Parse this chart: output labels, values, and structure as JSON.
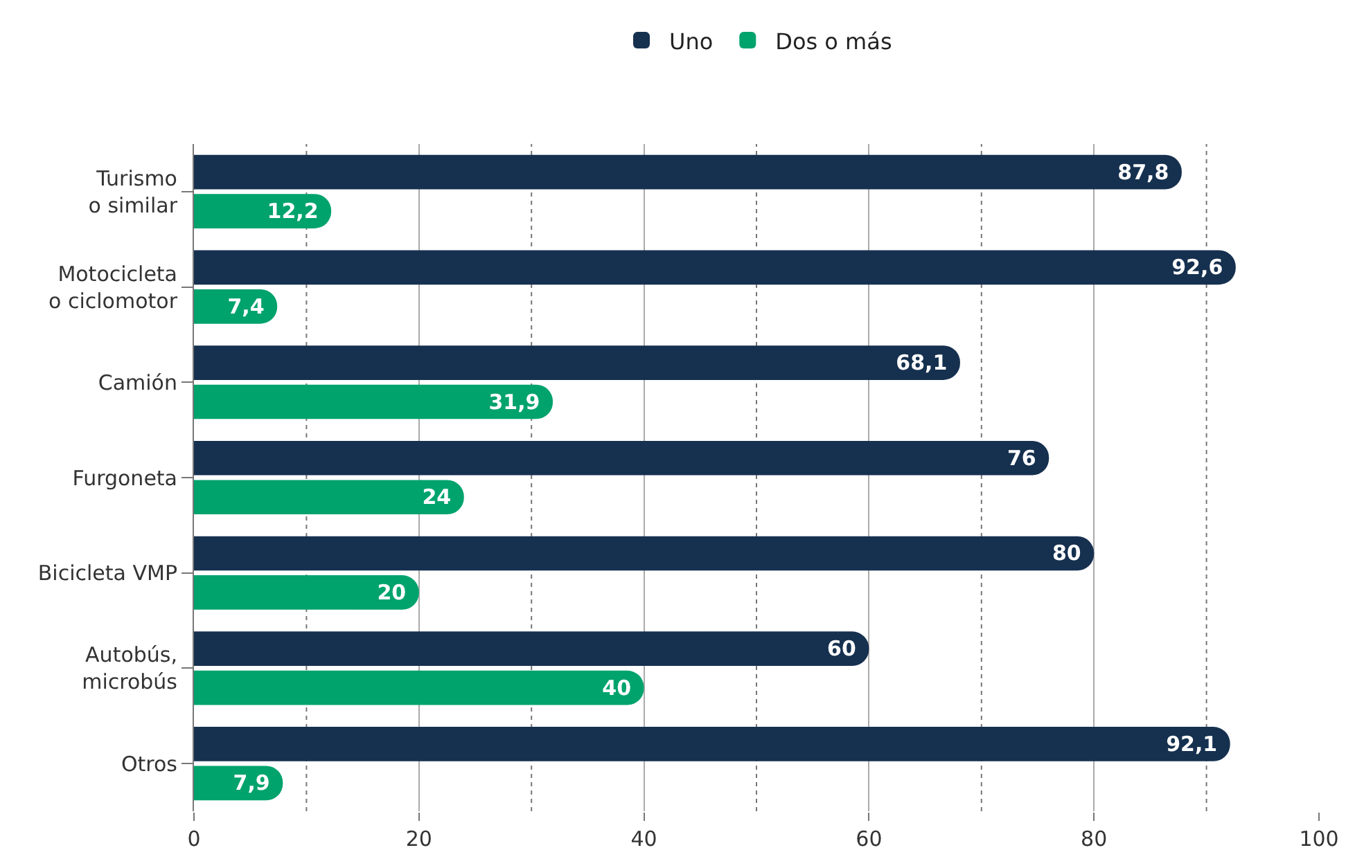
{
  "chart_data": {
    "type": "bar",
    "orientation": "horizontal",
    "categories": [
      "Turismo\no similar",
      "Motocicleta\no ciclomotor",
      "Camión",
      "Furgoneta",
      "Bicicleta VMP",
      "Autobús,\nmicrobús",
      "Otros"
    ],
    "series": [
      {
        "name": "Uno",
        "color": "#16304f",
        "values": [
          87.8,
          92.6,
          68.1,
          76,
          80,
          60,
          92.1
        ],
        "value_labels": [
          "87,8",
          "92,6",
          "68,1",
          "76",
          "80",
          "60",
          "92,1"
        ]
      },
      {
        "name": "Dos o más",
        "color": "#00a36c",
        "values": [
          12.2,
          7.4,
          31.9,
          24,
          20,
          40,
          7.9
        ],
        "value_labels": [
          "12,2",
          "7,4",
          "31,9",
          "24",
          "20",
          "40",
          "7,9"
        ]
      }
    ],
    "xlim": [
      0,
      100
    ],
    "xticks": [
      0,
      {
        "value": 10,
        "label": null
      },
      20,
      {
        "value": 30,
        "label": null
      },
      40,
      {
        "value": 50,
        "label": null
      },
      60,
      {
        "value": 70,
        "label": null
      },
      80,
      {
        "value": 90,
        "label": null
      },
      100
    ],
    "grid": "x",
    "legend": "top"
  }
}
